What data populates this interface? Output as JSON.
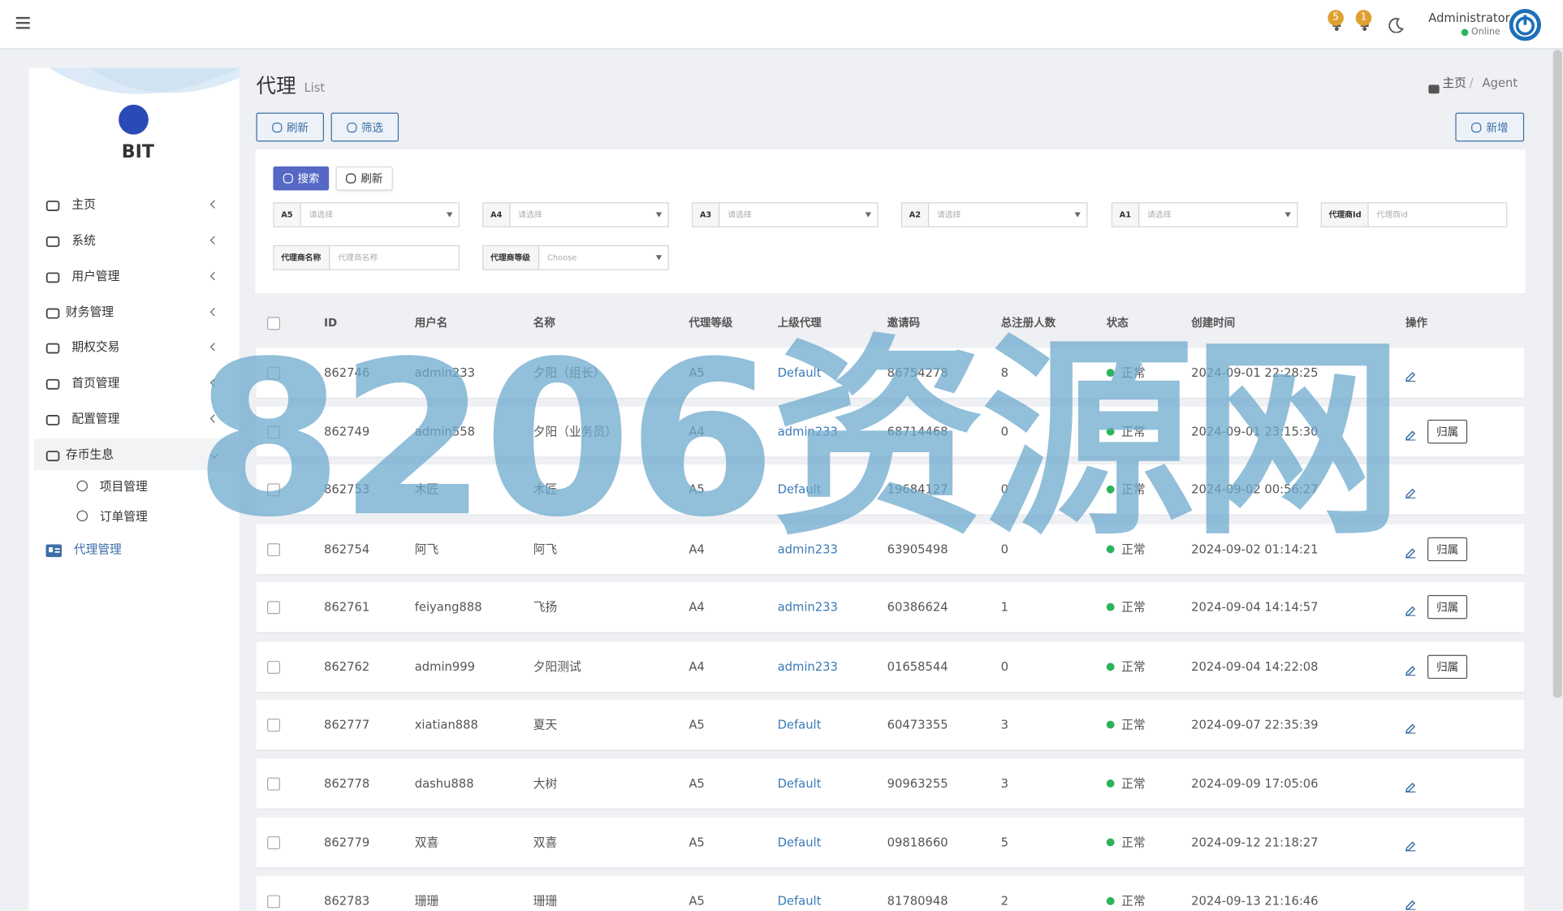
{
  "header": {
    "badges": [
      "5",
      "1"
    ],
    "user": "Administrator",
    "status": "Online"
  },
  "sidebar": {
    "brand": "BIT",
    "menu": [
      "主页",
      "系统",
      "用户管理",
      "财务管理",
      "期权交易",
      "首页管理",
      "配置管理",
      "存币生息"
    ],
    "submenu": [
      "项目管理",
      "订单管理"
    ],
    "active": "代理管理"
  },
  "content": {
    "title": "代理",
    "subtitle": "List",
    "breadcrumb": [
      "主页",
      "Agent"
    ],
    "toolbar": [
      "刷新",
      "筛选"
    ],
    "add": "新增",
    "search": [
      "搜索",
      "刷新"
    ],
    "filters": [
      {
        "label": "A5",
        "placeholder": "请选择"
      },
      {
        "label": "A4",
        "placeholder": "请选择"
      },
      {
        "label": "A3",
        "placeholder": "请选择"
      },
      {
        "label": "A2",
        "placeholder": "请选择"
      },
      {
        "label": "A1",
        "placeholder": "请选择"
      },
      {
        "label": "代理商Id",
        "placeholder": "代理商id"
      },
      {
        "label": "代理商名称",
        "placeholder": "代理商名称"
      },
      {
        "label": "代理商等级",
        "placeholder": "Choose"
      }
    ]
  },
  "table": {
    "columns": [
      "ID",
      "用户名",
      "名称",
      "代理等级",
      "上级代理",
      "邀请码",
      "总注册人数",
      "状态",
      "创建时间",
      "操作"
    ],
    "rows": [
      {
        "cells": [
          "862746",
          "admin233",
          "夕阳（组长）",
          "A5",
          "Default",
          "86754278",
          "8",
          "正常",
          "2024-09-01 22:28:25"
        ]
      },
      {
        "cells": [
          "862749",
          "admin558",
          "夕阳（业务员）",
          "A4",
          "admin233",
          "68714468",
          "0",
          "正常",
          "2024-09-01 23:15:30"
        ],
        "action": "归属"
      },
      {
        "cells": [
          "862753",
          "木匠",
          "木匠",
          "A5",
          "Default",
          "19684127",
          "0",
          "正常",
          "2024-09-02 00:56:27"
        ]
      },
      {
        "cells": [
          "862754",
          "阿飞",
          "阿飞",
          "A4",
          "admin233",
          "63905498",
          "0",
          "正常",
          "2024-09-02 01:14:21"
        ],
        "action": "归属"
      },
      {
        "cells": [
          "862761",
          "feiyang888",
          "飞扬",
          "A4",
          "admin233",
          "60386624",
          "1",
          "正常",
          "2024-09-04 14:14:57"
        ],
        "action": "归属"
      },
      {
        "cells": [
          "862762",
          "admin999",
          "夕阳测试",
          "A4",
          "admin233",
          "01658544",
          "0",
          "正常",
          "2024-09-04 14:22:08"
        ],
        "action": "归属"
      },
      {
        "cells": [
          "862777",
          "xiatian888",
          "夏天",
          "A5",
          "Default",
          "60473355",
          "3",
          "正常",
          "2024-09-07 22:35:39"
        ]
      },
      {
        "cells": [
          "862778",
          "dashu888",
          "大树",
          "A5",
          "Default",
          "90963255",
          "3",
          "正常",
          "2024-09-09 17:05:06"
        ]
      },
      {
        "cells": [
          "862779",
          "双喜",
          "双喜",
          "A5",
          "Default",
          "09818660",
          "5",
          "正常",
          "2024-09-12 21:18:27"
        ]
      },
      {
        "cells": [
          "862783",
          "珊珊",
          "珊珊",
          "A5",
          "Default",
          "81780948",
          "2",
          "正常",
          "2024-09-13 21:16:46"
        ]
      }
    ]
  },
  "watermark": "8206资源网"
}
